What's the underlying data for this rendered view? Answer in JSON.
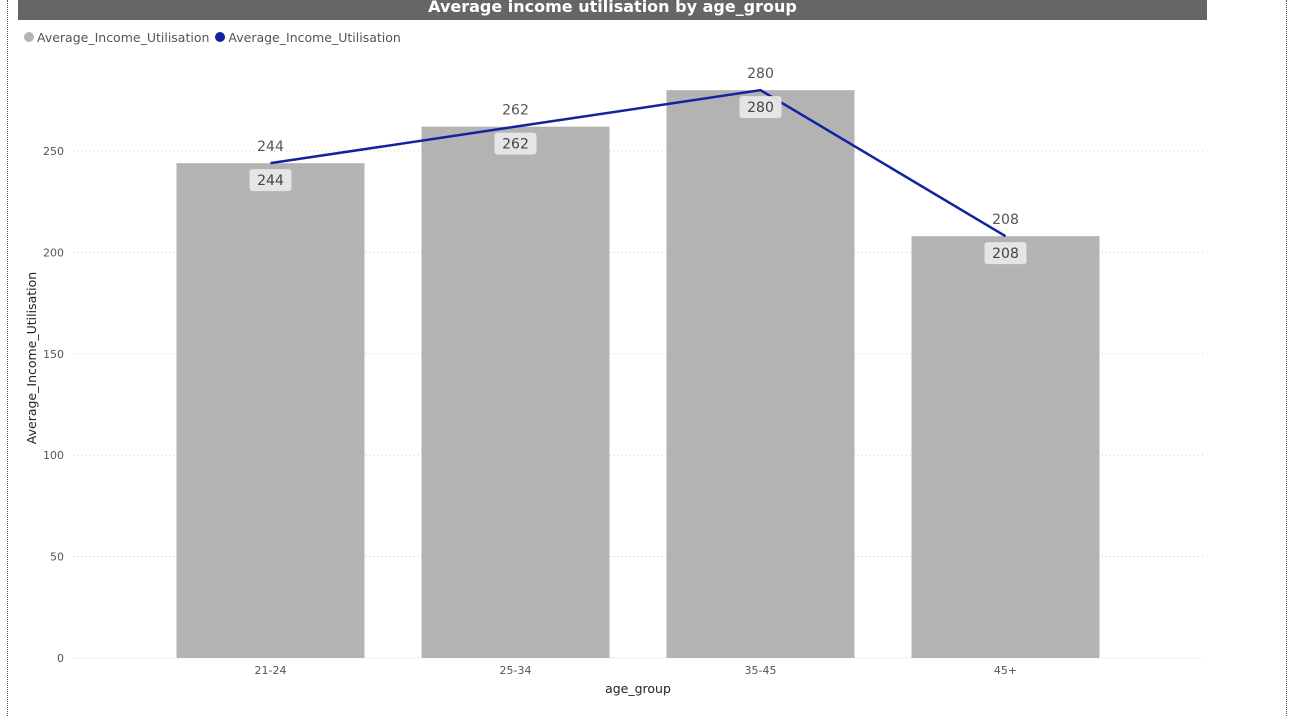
{
  "title": "Average income utilisation by age_group",
  "legend": [
    {
      "label": "Average_Income_Utilisation",
      "color": "#b3b3b3"
    },
    {
      "label": "Average_Income_Utilisation",
      "color": "#12239e"
    }
  ],
  "chart_data": {
    "type": "bar",
    "categories": [
      "21-24",
      "25-34",
      "35-45",
      "45+"
    ],
    "series": [
      {
        "name": "Average_Income_Utilisation",
        "type": "bar",
        "color": "#b3b3b3",
        "values": [
          244,
          262,
          280,
          208
        ]
      },
      {
        "name": "Average_Income_Utilisation",
        "type": "line",
        "color": "#12239e",
        "values": [
          244,
          262,
          280,
          208
        ]
      }
    ],
    "xlabel": "age_group",
    "ylabel": "Average_Income_Utilisation",
    "ylim": [
      0,
      280
    ],
    "yticks": [
      0,
      50,
      100,
      150,
      200,
      250
    ],
    "grid": true,
    "legend_position": "top-left"
  }
}
